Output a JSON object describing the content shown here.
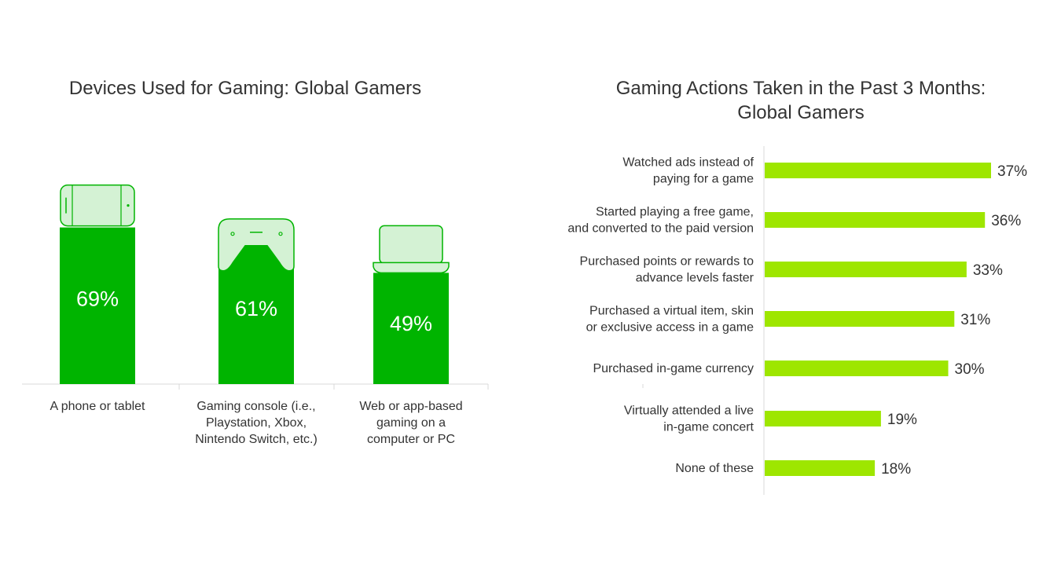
{
  "chart_data": [
    {
      "type": "bar",
      "orientation": "vertical",
      "title": "Devices Used for Gaming: Global Gamers",
      "categories": [
        [
          "A phone or tablet"
        ],
        [
          "Gaming console (i.e.,",
          "Playstation, Xbox,",
          "Nintendo Switch, etc.)"
        ],
        [
          "Web or app-based",
          "gaming on a",
          "computer or PC"
        ]
      ],
      "values": [
        69,
        61,
        49
      ],
      "value_labels": [
        "69%",
        "61%",
        "49%"
      ],
      "icons": [
        "phone-icon",
        "gamepad-icon",
        "laptop-icon"
      ],
      "ylim": [
        0,
        100
      ],
      "grid": false,
      "colors": {
        "bar": "#00b400",
        "icon_fill": "#d4f2d4",
        "icon_stroke": "#00b400",
        "axis": "#d9d9d9"
      }
    },
    {
      "type": "bar",
      "orientation": "horizontal",
      "title": [
        "Gaming Actions Taken in the Past 3 Months:",
        "Global Gamers"
      ],
      "categories": [
        [
          "Watched ads instead of",
          "paying for a game"
        ],
        [
          "Started playing a free game,",
          "and converted to the paid version"
        ],
        [
          "Purchased points or rewards to",
          "advance levels faster"
        ],
        [
          "Purchased a virtual item, skin",
          "or exclusive access in a game"
        ],
        [
          "Purchased in-game currency"
        ],
        [
          "Virtually attended a live",
          "in-game concert"
        ],
        [
          "None of these"
        ]
      ],
      "values": [
        37,
        36,
        33,
        31,
        30,
        19,
        18
      ],
      "value_labels": [
        "37%",
        "36%",
        "33%",
        "31%",
        "30%",
        "19%",
        "18%"
      ],
      "xlim": [
        0,
        40
      ],
      "grid": false,
      "colors": {
        "bar": "#9ee600",
        "axis": "#d9d9d9"
      }
    }
  ]
}
